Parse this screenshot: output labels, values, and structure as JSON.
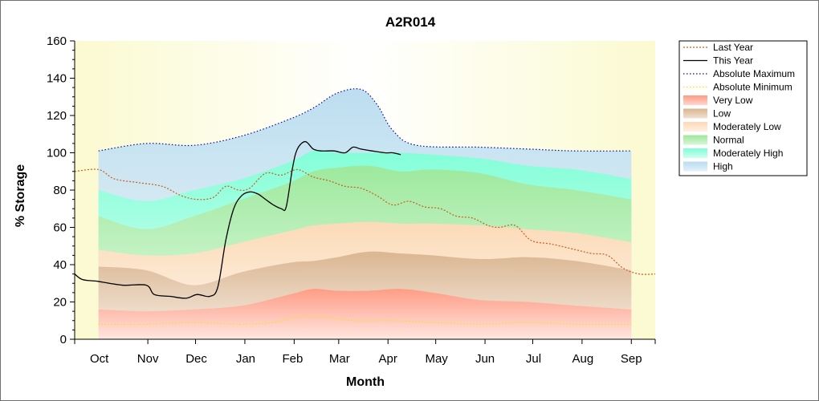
{
  "chart_data": {
    "type": "area",
    "title": "A2R014",
    "xlabel": "Month",
    "ylabel": "% Storage",
    "ylim": [
      0,
      160
    ],
    "yticks": [
      0,
      20,
      40,
      60,
      80,
      100,
      120,
      140,
      160
    ],
    "x_unit": "days since Oct 1",
    "categories": [
      "Oct",
      "Nov",
      "Dec",
      "Jan",
      "Feb",
      "Mar",
      "Apr",
      "May",
      "Jun",
      "Jul",
      "Aug",
      "Sep"
    ],
    "month_starts": [
      0,
      31,
      61,
      92,
      123,
      151,
      182,
      212,
      243,
      273,
      304,
      335
    ],
    "xlim": [
      -15,
      350
    ],
    "legend_position": "right",
    "bands": [
      {
        "name": "Very Low",
        "color": "#ff9a83",
        "x": [
          0,
          30,
          60,
          90,
          120,
          135,
          150,
          170,
          190,
          210,
          240,
          270,
          300,
          335
        ],
        "lower": [
          0,
          0,
          0,
          0,
          0,
          0,
          0,
          0,
          0,
          0,
          0,
          0,
          0,
          0
        ],
        "upper": [
          16,
          15,
          16,
          18,
          24,
          27,
          26,
          26,
          27,
          25,
          21,
          20,
          18,
          16
        ]
      },
      {
        "name": "Low",
        "color": "#d9b48f",
        "x": [
          0,
          30,
          60,
          90,
          120,
          135,
          150,
          170,
          190,
          210,
          240,
          270,
          300,
          335
        ],
        "upper": [
          39,
          37,
          29,
          36,
          41,
          42,
          44,
          47,
          46,
          45,
          43,
          44,
          42,
          37
        ]
      },
      {
        "name": "Moderately Low",
        "color": "#ffd9b7",
        "x": [
          0,
          30,
          60,
          90,
          120,
          135,
          150,
          170,
          190,
          210,
          240,
          270,
          300,
          335
        ],
        "upper": [
          48,
          45,
          46,
          52,
          58,
          61,
          62,
          63,
          62,
          62,
          61,
          59,
          57,
          52
        ]
      },
      {
        "name": "Normal",
        "color": "#9ee89a",
        "x": [
          0,
          30,
          60,
          90,
          120,
          135,
          150,
          170,
          190,
          210,
          240,
          270,
          300,
          335
        ],
        "upper": [
          66,
          59,
          66,
          75,
          84,
          90,
          92,
          93,
          90,
          91,
          89,
          83,
          80,
          75
        ]
      },
      {
        "name": "Moderately High",
        "color": "#7fffd6",
        "x": [
          0,
          30,
          60,
          90,
          120,
          135,
          150,
          170,
          190,
          210,
          240,
          270,
          300,
          335
        ],
        "upper": [
          80,
          74,
          80,
          86,
          95,
          101,
          100,
          100,
          100,
          99,
          97,
          93,
          91,
          86
        ]
      },
      {
        "name": "High",
        "color": "#b9dcef",
        "x": [
          0,
          30,
          60,
          90,
          120,
          135,
          150,
          165,
          175,
          185,
          200,
          240,
          270,
          300,
          335
        ],
        "upper": [
          101,
          105,
          104,
          109,
          118,
          124,
          132,
          134,
          126,
          112,
          104,
          103,
          102,
          101,
          101
        ]
      }
    ],
    "series": [
      {
        "name": "Last Year",
        "color": "#cd5c1e",
        "style": "dotted",
        "x": [
          -15,
          0,
          10,
          25,
          40,
          52,
          62,
          72,
          80,
          88,
          95,
          105,
          115,
          125,
          135,
          145,
          155,
          165,
          175,
          185,
          195,
          205,
          215,
          225,
          235,
          245,
          252,
          262,
          272,
          285,
          300,
          310,
          320,
          330,
          340,
          350
        ],
        "y": [
          90,
          91,
          86,
          84,
          82,
          77,
          75,
          76,
          82,
          80,
          81,
          89,
          88,
          91,
          87,
          85,
          82,
          81,
          77,
          72,
          74,
          71,
          70,
          66,
          65,
          61,
          60,
          61,
          53,
          51,
          48,
          46,
          45,
          38,
          35,
          35
        ]
      },
      {
        "name": "This Year",
        "color": "#000000",
        "style": "solid",
        "x": [
          -15,
          -10,
          0,
          15,
          30,
          35,
          45,
          55,
          62,
          70,
          75,
          80,
          85,
          90,
          95,
          100,
          105,
          110,
          115,
          118,
          122,
          125,
          130,
          135,
          140,
          148,
          155,
          160,
          165,
          172,
          180,
          185,
          190
        ],
        "y": [
          35,
          32,
          31,
          29,
          29,
          24,
          23,
          22,
          24,
          23,
          28,
          53,
          70,
          77,
          79,
          78,
          75,
          72,
          70,
          71,
          92,
          102,
          106,
          102,
          101,
          101,
          100,
          103,
          102,
          101,
          100,
          100,
          99
        ]
      },
      {
        "name": "Absolute Maximum",
        "color": "#0a0aa0",
        "style": "dashdot",
        "x": [
          0,
          30,
          60,
          90,
          120,
          135,
          150,
          165,
          175,
          185,
          200,
          240,
          270,
          300,
          335
        ],
        "y": [
          101,
          105,
          104,
          109,
          118,
          124,
          132,
          134,
          126,
          112,
          104,
          103,
          102,
          101,
          101
        ]
      },
      {
        "name": "Absolute Minimum",
        "color": "#f2e600",
        "style": "dashdot",
        "x": [
          0,
          30,
          60,
          90,
          110,
          125,
          140,
          160,
          185,
          210,
          240,
          270,
          300,
          335
        ],
        "y": [
          8,
          8,
          9,
          8,
          9,
          12,
          12,
          10,
          10,
          9,
          8,
          9,
          8,
          8
        ]
      }
    ],
    "legend": [
      {
        "label": "Last Year",
        "kind": "line",
        "color": "#cd5c1e",
        "style": "dotted"
      },
      {
        "label": "This Year",
        "kind": "line",
        "color": "#000000",
        "style": "solid"
      },
      {
        "label": "Absolute Maximum",
        "kind": "line",
        "color": "#0a0aa0",
        "style": "dashdot"
      },
      {
        "label": "Absolute Minimum",
        "kind": "line",
        "color": "#f2e600",
        "style": "dashdot"
      },
      {
        "label": "Very Low",
        "kind": "band",
        "color": "#ff9a83"
      },
      {
        "label": "Low",
        "kind": "band",
        "color": "#d9b48f"
      },
      {
        "label": "Moderately Low",
        "kind": "band",
        "color": "#ffd9b7"
      },
      {
        "label": "Normal",
        "kind": "band",
        "color": "#9ee89a"
      },
      {
        "label": "Moderately High",
        "kind": "band",
        "color": "#7fffd6"
      },
      {
        "label": "High",
        "kind": "band",
        "color": "#b9dcef"
      }
    ],
    "plot_background": "#fdfbe3",
    "plot_background_edge": "#fbfad0"
  }
}
